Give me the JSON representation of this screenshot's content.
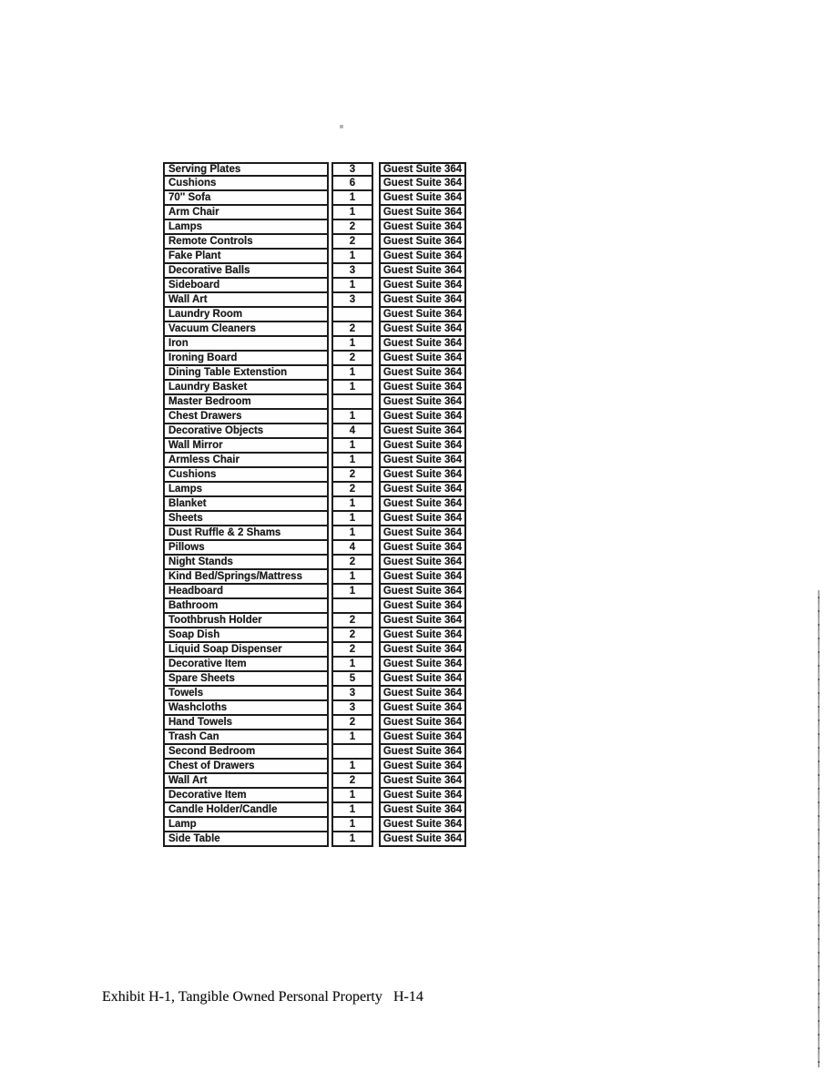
{
  "footer": {
    "exhibit_label": "Exhibit H-1, Tangible Owned Personal Property",
    "page_number": "H-14"
  },
  "colors": {
    "page_background": "#ffffff",
    "table_border": "#1c1c1c",
    "text": "#1d1d1d",
    "scan_artifact": "#9c9c9c"
  },
  "table": {
    "default_location": "Guest Suite 364",
    "rows": [
      {
        "item": "Serving Plates",
        "qty": "3",
        "location": "Guest Suite 364"
      },
      {
        "item": "Cushions",
        "qty": "6",
        "location": "Guest Suite 364"
      },
      {
        "item": "70'' Sofa",
        "qty": "1",
        "location": "Guest Suite 364"
      },
      {
        "item": "Arm Chair",
        "qty": "1",
        "location": "Guest Suite 364"
      },
      {
        "item": "Lamps",
        "qty": "2",
        "location": "Guest Suite 364"
      },
      {
        "item": "Remote Controls",
        "qty": "2",
        "location": "Guest Suite 364"
      },
      {
        "item": "Fake Plant",
        "qty": "1",
        "location": "Guest Suite 364"
      },
      {
        "item": "Decorative Balls",
        "qty": "3",
        "location": "Guest Suite 364"
      },
      {
        "item": "Sideboard",
        "qty": "1",
        "location": "Guest Suite 364"
      },
      {
        "item": "Wall Art",
        "qty": "3",
        "location": "Guest Suite 364"
      },
      {
        "item": "Laundry Room",
        "qty": "",
        "location": "Guest Suite 364"
      },
      {
        "item": "Vacuum Cleaners",
        "qty": "2",
        "location": "Guest Suite 364"
      },
      {
        "item": "Iron",
        "qty": "1",
        "location": "Guest Suite 364"
      },
      {
        "item": "Ironing Board",
        "qty": "2",
        "location": "Guest Suite 364"
      },
      {
        "item": "Dining Table Extenstion",
        "qty": "1",
        "location": "Guest Suite 364"
      },
      {
        "item": "Laundry Basket",
        "qty": "1",
        "location": "Guest Suite 364"
      },
      {
        "item": "Master Bedroom",
        "qty": "",
        "location": "Guest Suite 364"
      },
      {
        "item": "Chest Drawers",
        "qty": "1",
        "location": "Guest Suite 364"
      },
      {
        "item": "Decorative Objects",
        "qty": "4",
        "location": "Guest Suite 364"
      },
      {
        "item": "Wall Mirror",
        "qty": "1",
        "location": "Guest Suite 364"
      },
      {
        "item": "Armless Chair",
        "qty": "1",
        "location": "Guest Suite 364"
      },
      {
        "item": "Cushions",
        "qty": "2",
        "location": "Guest Suite 364"
      },
      {
        "item": "Lamps",
        "qty": "2",
        "location": "Guest Suite 364"
      },
      {
        "item": "Blanket",
        "qty": "1",
        "location": "Guest Suite 364"
      },
      {
        "item": "Sheets",
        "qty": "1",
        "location": "Guest Suite 364"
      },
      {
        "item": "Dust Ruffle & 2 Shams",
        "qty": "1",
        "location": "Guest Suite 364"
      },
      {
        "item": "Pillows",
        "qty": "4",
        "location": "Guest Suite 364"
      },
      {
        "item": "Night Stands",
        "qty": "2",
        "location": "Guest Suite 364"
      },
      {
        "item": "Kind Bed/Springs/Mattress",
        "qty": "1",
        "location": "Guest Suite 364"
      },
      {
        "item": "Headboard",
        "qty": "1",
        "location": "Guest Suite 364"
      },
      {
        "item": "Bathroom",
        "qty": "",
        "location": "Guest Suite 364"
      },
      {
        "item": "Toothbrush Holder",
        "qty": "2",
        "location": "Guest Suite 364"
      },
      {
        "item": "Soap Dish",
        "qty": "2",
        "location": "Guest Suite 364"
      },
      {
        "item": "Liquid Soap Dispenser",
        "qty": "2",
        "location": "Guest Suite 364"
      },
      {
        "item": "Decorative Item",
        "qty": "1",
        "location": "Guest Suite 364"
      },
      {
        "item": "Spare Sheets",
        "qty": "5",
        "location": "Guest Suite 364"
      },
      {
        "item": "Towels",
        "qty": "3",
        "location": "Guest Suite 364"
      },
      {
        "item": "Washcloths",
        "qty": "3",
        "location": "Guest Suite 364"
      },
      {
        "item": "Hand Towels",
        "qty": "2",
        "location": "Guest Suite 364"
      },
      {
        "item": "Trash Can",
        "qty": "1",
        "location": "Guest Suite 364"
      },
      {
        "item": "Second Bedroom",
        "qty": "",
        "location": "Guest Suite 364"
      },
      {
        "item": "Chest of Drawers",
        "qty": "1",
        "location": "Guest Suite 364"
      },
      {
        "item": "Wall Art",
        "qty": "2",
        "location": "Guest Suite 364"
      },
      {
        "item": "Decorative Item",
        "qty": "1",
        "location": "Guest Suite 364"
      },
      {
        "item": "Candle Holder/Candle",
        "qty": "1",
        "location": "Guest Suite 364"
      },
      {
        "item": "Lamp",
        "qty": "1",
        "location": "Guest Suite 364"
      },
      {
        "item": "Side Table",
        "qty": "1",
        "location": "Guest Suite 364"
      }
    ]
  }
}
